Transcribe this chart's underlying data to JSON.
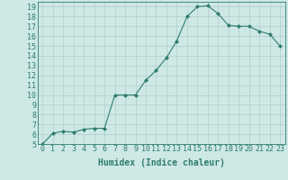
{
  "x": [
    0,
    1,
    2,
    3,
    4,
    5,
    6,
    7,
    8,
    9,
    10,
    11,
    12,
    13,
    14,
    15,
    16,
    17,
    18,
    19,
    20,
    21,
    22,
    23
  ],
  "y": [
    5.0,
    6.1,
    6.3,
    6.2,
    6.5,
    6.6,
    6.6,
    10.0,
    10.0,
    10.0,
    11.5,
    12.5,
    13.8,
    15.5,
    18.0,
    19.0,
    19.1,
    18.3,
    17.1,
    17.0,
    17.0,
    16.5,
    16.2,
    15.0
  ],
  "xlim": [
    -0.5,
    23.5
  ],
  "ylim": [
    5,
    19.5
  ],
  "yticks": [
    5,
    6,
    7,
    8,
    9,
    10,
    11,
    12,
    13,
    14,
    15,
    16,
    17,
    18,
    19
  ],
  "xticks": [
    0,
    1,
    2,
    3,
    4,
    5,
    6,
    7,
    8,
    9,
    10,
    11,
    12,
    13,
    14,
    15,
    16,
    17,
    18,
    19,
    20,
    21,
    22,
    23
  ],
  "xlabel": "Humidex (Indice chaleur)",
  "line_color": "#2e7d6e",
  "marker": "D",
  "marker_size": 2,
  "bg_color": "#cde8e5",
  "grid_color": "#b0ceca",
  "tick_fontsize": 6,
  "xlabel_fontsize": 7,
  "xlabel_fontweight": "bold"
}
